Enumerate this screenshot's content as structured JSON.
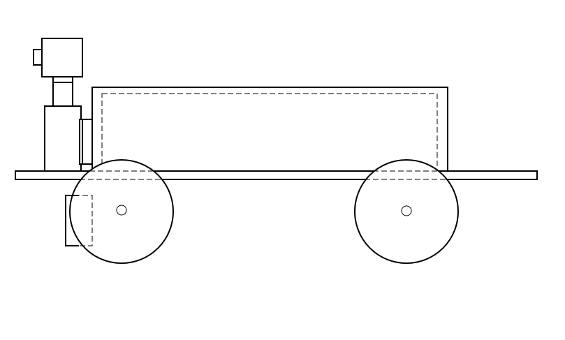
{
  "drawing": {
    "view": "side elevation",
    "line_color": "#000000",
    "background_color": "#ffffff",
    "components": [
      "chassis-plate",
      "battery-box",
      "front-wheel",
      "rear-wheel",
      "camera-mast",
      "camera-head",
      "mount-bracket",
      "motor-housing"
    ]
  }
}
